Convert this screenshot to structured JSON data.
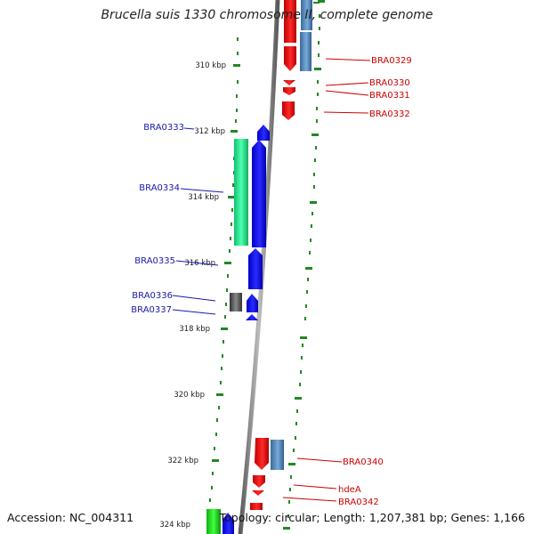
{
  "header": {
    "title": "Brucella suis 1330 chromosome II, complete genome"
  },
  "footer": {
    "accession": "Accession: NC_004311",
    "topology": "Topology: circular; Length: 1,207,381 bp; Genes: 1,166"
  },
  "scale": {
    "unit": "kbp",
    "ticks": [
      "310 kbp",
      "312 kbp",
      "314 kbp",
      "316 kbp",
      "318 kbp",
      "320 kbp",
      "322 kbp",
      "324 kbp"
    ]
  },
  "genes_left_strand": [
    {
      "label": "BRA0333"
    },
    {
      "label": "BRA0334"
    },
    {
      "label": "BRA0335"
    },
    {
      "label": "BRA0336"
    },
    {
      "label": "BRA0337"
    }
  ],
  "genes_right_strand": [
    {
      "label": "BRA0329"
    },
    {
      "label": "BRA0330"
    },
    {
      "label": "BRA0331"
    },
    {
      "label": "BRA0332"
    },
    {
      "label": "BRA0340"
    },
    {
      "label": "hdeA"
    },
    {
      "label": "BRA0342"
    }
  ],
  "colors": {
    "forward_gene": "#0000e0",
    "reverse_gene": "#e00000",
    "forward_label": "#1a1aaa",
    "reverse_label": "#cc0000",
    "cds_blue": "#4a7fb0",
    "cds_green": "#22dd88",
    "cds_green2": "#22cc22",
    "cds_gray": "#555555",
    "backbone": "#888888",
    "tick_green": "#228822"
  }
}
